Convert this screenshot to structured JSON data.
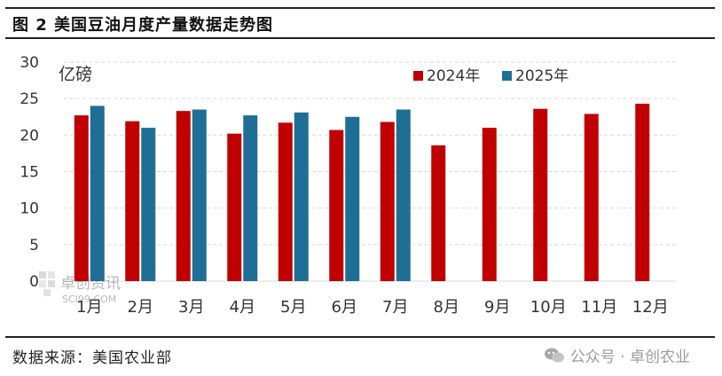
{
  "header": {
    "title": "图 2 美国豆油月度产量数据走势图"
  },
  "footer": {
    "source": "数据来源：美国农业部",
    "brand": "公众号 · 卓创农业",
    "watermark": "卓创资讯",
    "watermark_sub": "SCI99.COM"
  },
  "colors": {
    "series_2024": "#C00000",
    "series_2025": "#1F6E96",
    "gridline": "#D9D9D9"
  },
  "icons": {
    "watermark": "sci99-logo-icon",
    "brand": "wechat-icon"
  },
  "chart_data": {
    "type": "bar",
    "title": "",
    "ylabel": "亿磅",
    "xlabel": "",
    "ylim": [
      0,
      30
    ],
    "yticks": [
      0,
      5,
      10,
      15,
      20,
      25,
      30
    ],
    "grid": true,
    "legend": "top-right",
    "categories": [
      "1月",
      "2月",
      "3月",
      "4月",
      "5月",
      "6月",
      "7月",
      "8月",
      "9月",
      "10月",
      "11月",
      "12月"
    ],
    "series": [
      {
        "name": "2024年",
        "values": [
          22.7,
          21.9,
          23.3,
          20.2,
          21.7,
          20.7,
          21.8,
          18.6,
          21.0,
          23.6,
          22.9,
          24.3
        ]
      },
      {
        "name": "2025年",
        "values": [
          24.0,
          21.0,
          23.5,
          22.7,
          23.1,
          22.5,
          23.5,
          null,
          null,
          null,
          null,
          null
        ]
      }
    ]
  }
}
